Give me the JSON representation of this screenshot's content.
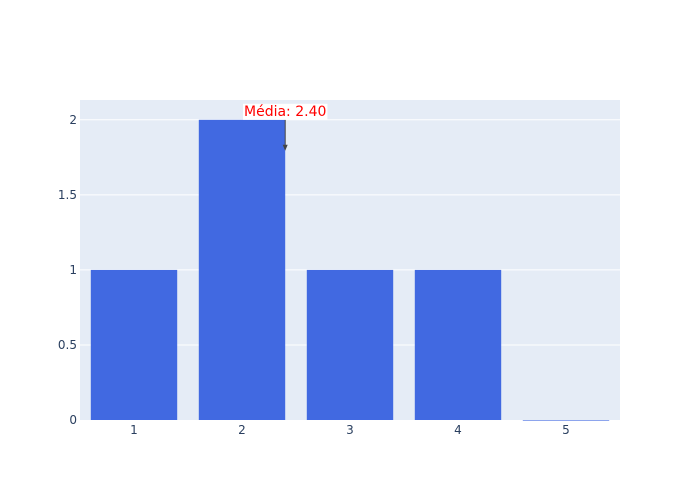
{
  "chart_data": {
    "type": "bar",
    "categories": [
      "1",
      "2",
      "3",
      "4",
      "5"
    ],
    "values": [
      1,
      2,
      1,
      1,
      0
    ],
    "title": "",
    "xlabel": "",
    "ylabel": "",
    "ylim": [
      0,
      2.132
    ],
    "yticks": [
      0,
      0.5,
      1,
      1.5,
      2
    ],
    "ytick_labels": [
      "0",
      "0.5",
      "1",
      "1.5",
      "2"
    ],
    "grid": true,
    "annotation": {
      "text": "Média: 2.40",
      "x": 2.4,
      "y": 2
    },
    "colors": {
      "bar": "#4169e1",
      "plot_bg": "#e5ecf6",
      "grid": "#ffffff",
      "annotation": "#ff0000",
      "arrow": "#444444"
    }
  }
}
